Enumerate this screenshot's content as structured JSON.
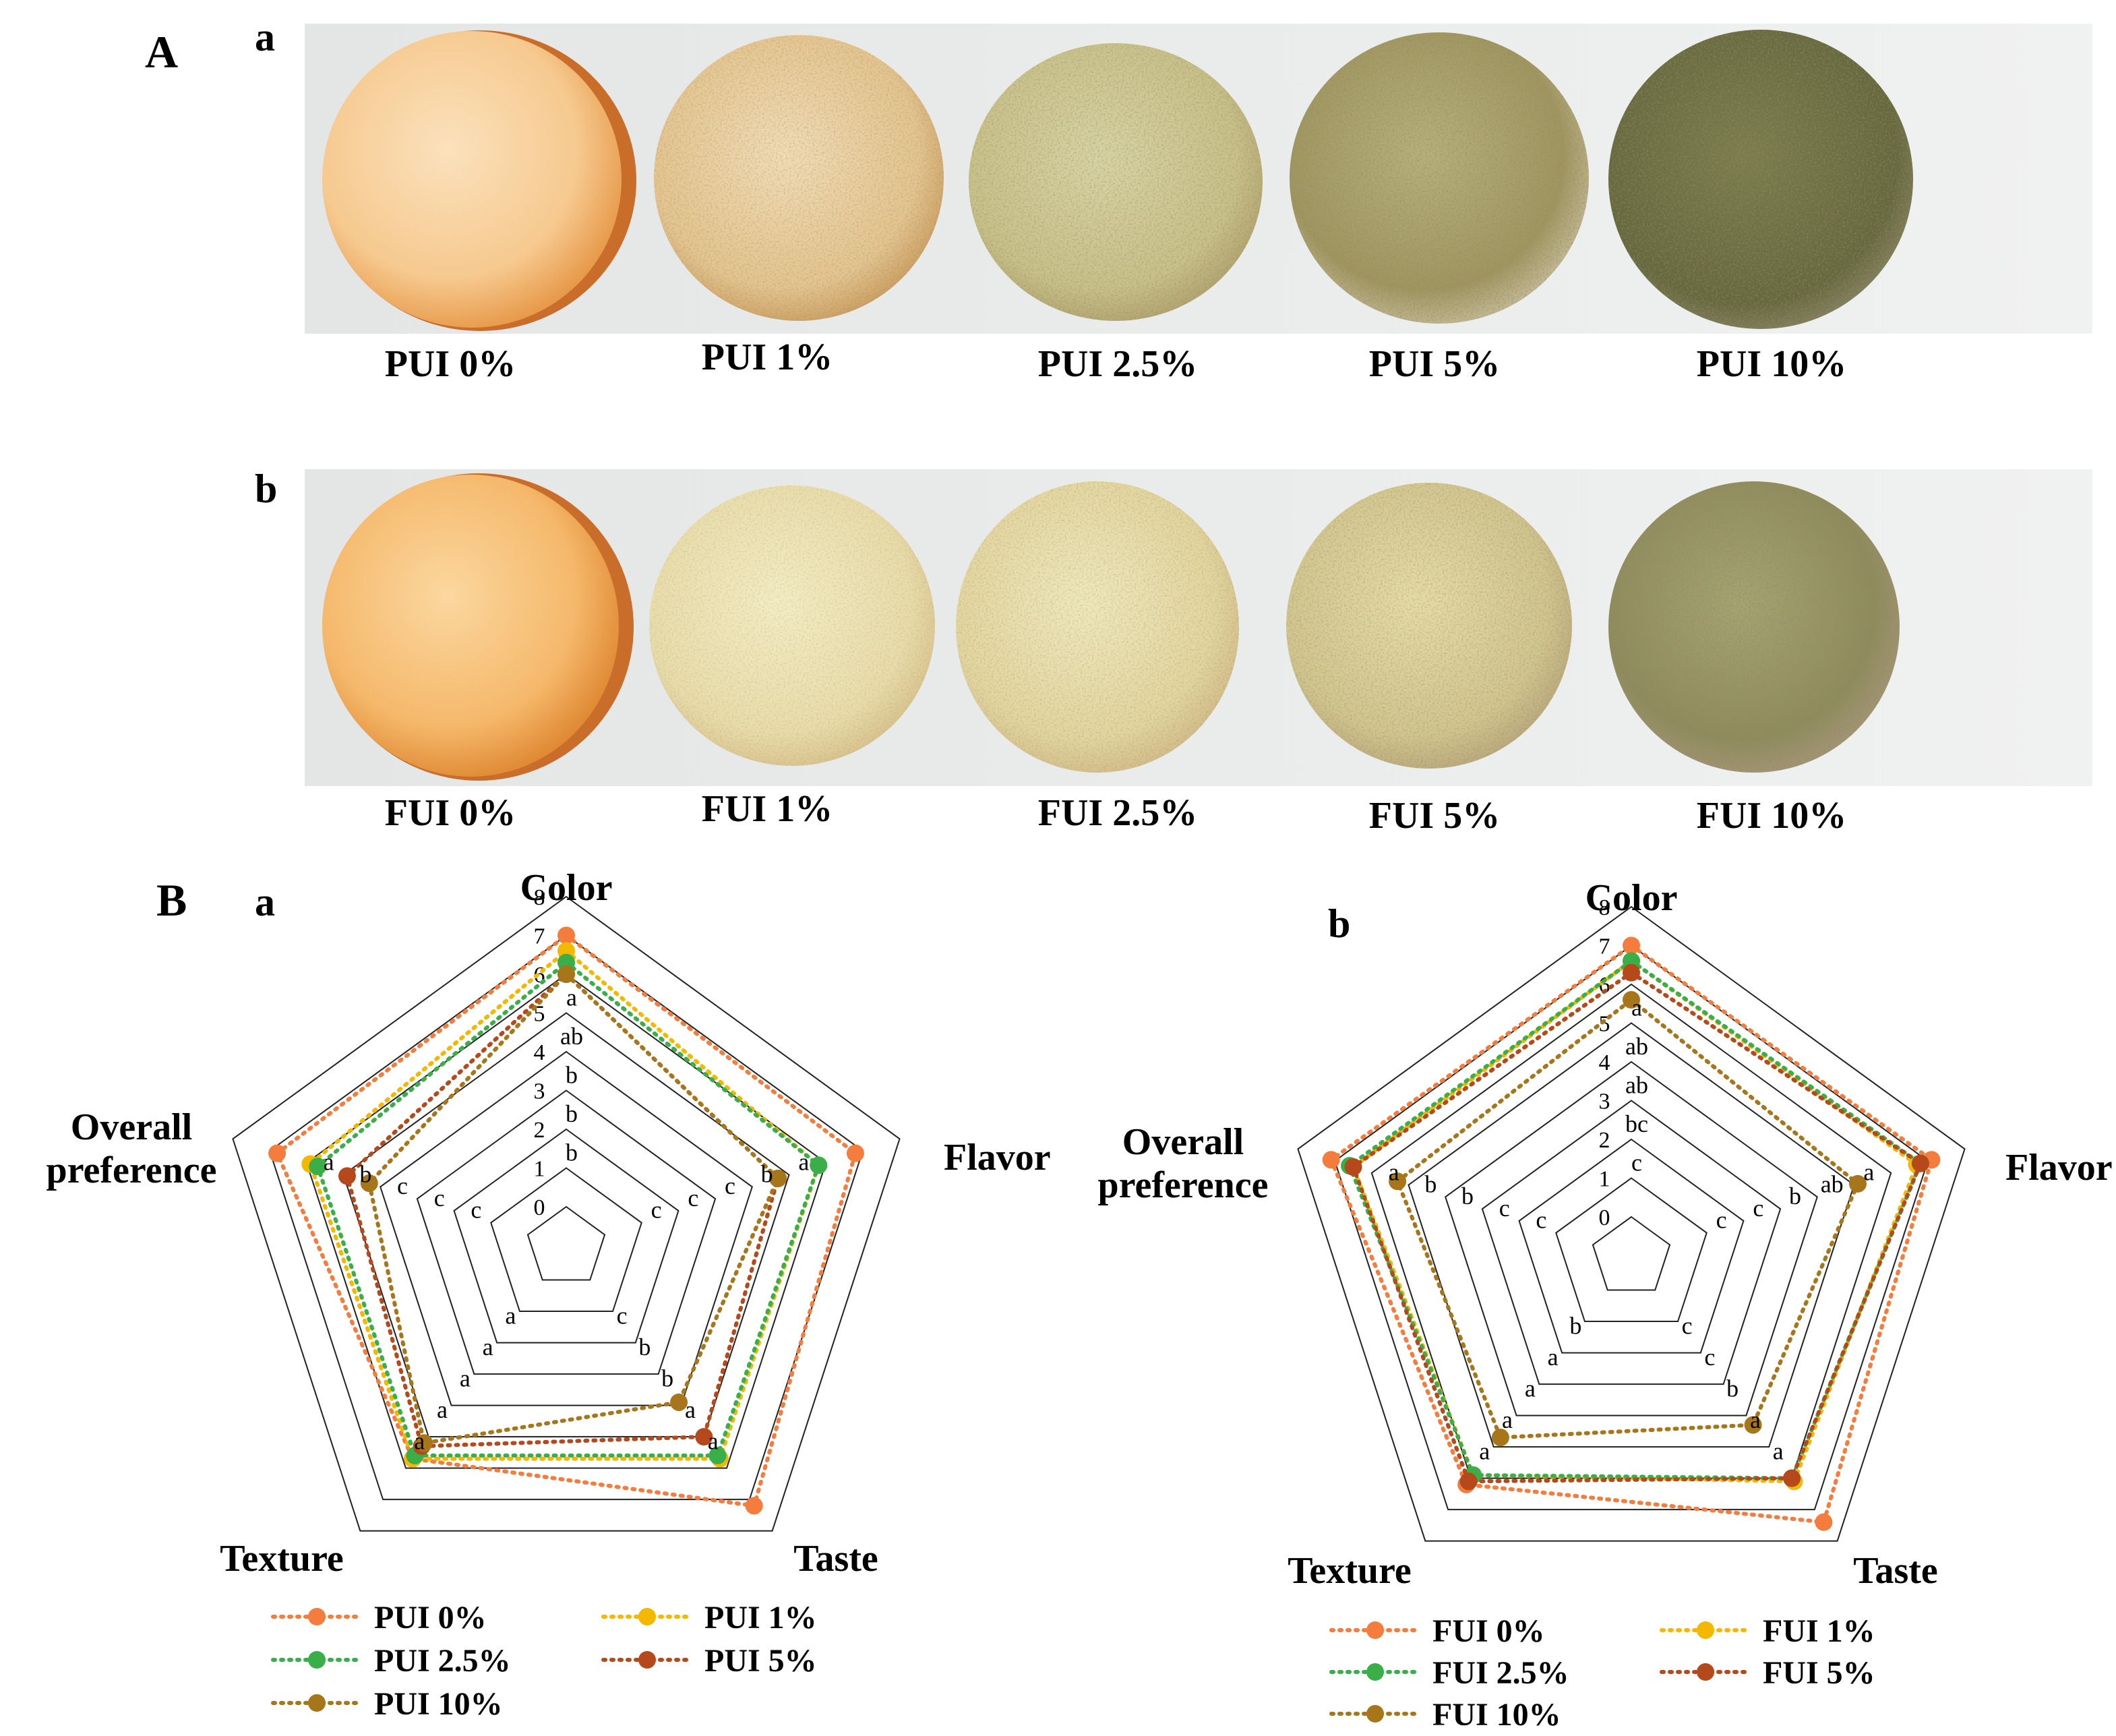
{
  "figure": {
    "panel_A": "A",
    "panel_B": "B"
  },
  "photos": [
    {
      "letter": "a",
      "labels": [
        "PUI 0%",
        "PUI 1%",
        "PUI 2.5%",
        "PUI 5%",
        "PUI 10%"
      ]
    },
    {
      "letter": "b",
      "labels": [
        "FUI 0%",
        "FUI 1%",
        "FUI 2.5%",
        "FUI 5%",
        "FUI 10%"
      ]
    }
  ],
  "colors": {
    "c0": "#f47c3c",
    "c1": "#f5b800",
    "c2_5": "#3aae49",
    "c5": "#b6491b",
    "c10": "#a8761a",
    "grid": "#222222"
  },
  "chart_data": [
    {
      "type": "radar",
      "letter": "a",
      "axes": [
        "Color",
        "Flavor",
        "Taste",
        "Texture",
        "Overall preference"
      ],
      "ticks": [
        0,
        1,
        2,
        3,
        4,
        5,
        6,
        7,
        8
      ],
      "rlim": [
        0,
        8
      ],
      "series": [
        {
          "name": "PUI 0%",
          "values": [
            7.0,
            6.8,
            7.2,
            5.7,
            6.8
          ],
          "color": "#f47c3c"
        },
        {
          "name": "PUI 1%",
          "values": [
            6.6,
            5.8,
            5.7,
            5.7,
            5.9
          ],
          "color": "#f5b800"
        },
        {
          "name": "PUI 2.5%",
          "values": [
            6.3,
            5.8,
            5.6,
            5.6,
            5.7
          ],
          "color": "#3aae49"
        },
        {
          "name": "PUI 5%",
          "values": [
            6.0,
            4.7,
            5.0,
            5.3,
            4.9
          ],
          "color": "#b6491b"
        },
        {
          "name": "PUI 10%",
          "values": [
            6.0,
            4.7,
            3.9,
            5.2,
            4.3
          ],
          "color": "#a8761a"
        }
      ],
      "significance": {
        "Color": [
          "a",
          "ab",
          "b",
          "b",
          "b"
        ],
        "Flavor": [
          "a",
          "b",
          "c",
          "c",
          "c"
        ],
        "Taste": [
          "a",
          "a",
          "b",
          "b",
          "c"
        ],
        "Texture": [
          "a",
          "a",
          "a",
          "a",
          "a"
        ],
        "Overall preference": [
          "a",
          "b",
          "c",
          "c",
          "c"
        ]
      }
    },
    {
      "type": "radar",
      "letter": "b",
      "axes": [
        "Color",
        "Flavor",
        "Taste",
        "Texture",
        "Overall preference"
      ],
      "ticks": [
        0,
        1,
        2,
        3,
        4,
        5,
        6,
        7,
        8
      ],
      "rlim": [
        0,
        8
      ],
      "series": [
        {
          "name": "FUI 0%",
          "values": [
            7.0,
            7.1,
            7.4,
            6.2,
            7.1
          ],
          "color": "#f47c3c"
        },
        {
          "name": "FUI 1%",
          "values": [
            6.6,
            6.7,
            6.1,
            5.9,
            6.5
          ],
          "color": "#f5b800"
        },
        {
          "name": "FUI 2.5%",
          "values": [
            6.6,
            6.8,
            6.0,
            5.9,
            6.6
          ],
          "color": "#3aae49"
        },
        {
          "name": "FUI 5%",
          "values": [
            6.3,
            6.8,
            6.0,
            6.1,
            6.5
          ],
          "color": "#b6491b"
        },
        {
          "name": "FUI 10%",
          "values": [
            5.6,
            5.1,
            4.3,
            4.7,
            5.3
          ],
          "color": "#a8761a"
        }
      ],
      "significance": {
        "Color": [
          "a",
          "ab",
          "ab",
          "bc",
          "c"
        ],
        "Flavor": [
          "a",
          "ab",
          "b",
          "c",
          "c"
        ],
        "Taste": [
          "a",
          "a",
          "b",
          "c",
          "c"
        ],
        "Texture": [
          "a",
          "a",
          "a",
          "a",
          "b"
        ],
        "Overall preference": [
          "a",
          "b",
          "b",
          "c",
          "c"
        ]
      }
    }
  ]
}
